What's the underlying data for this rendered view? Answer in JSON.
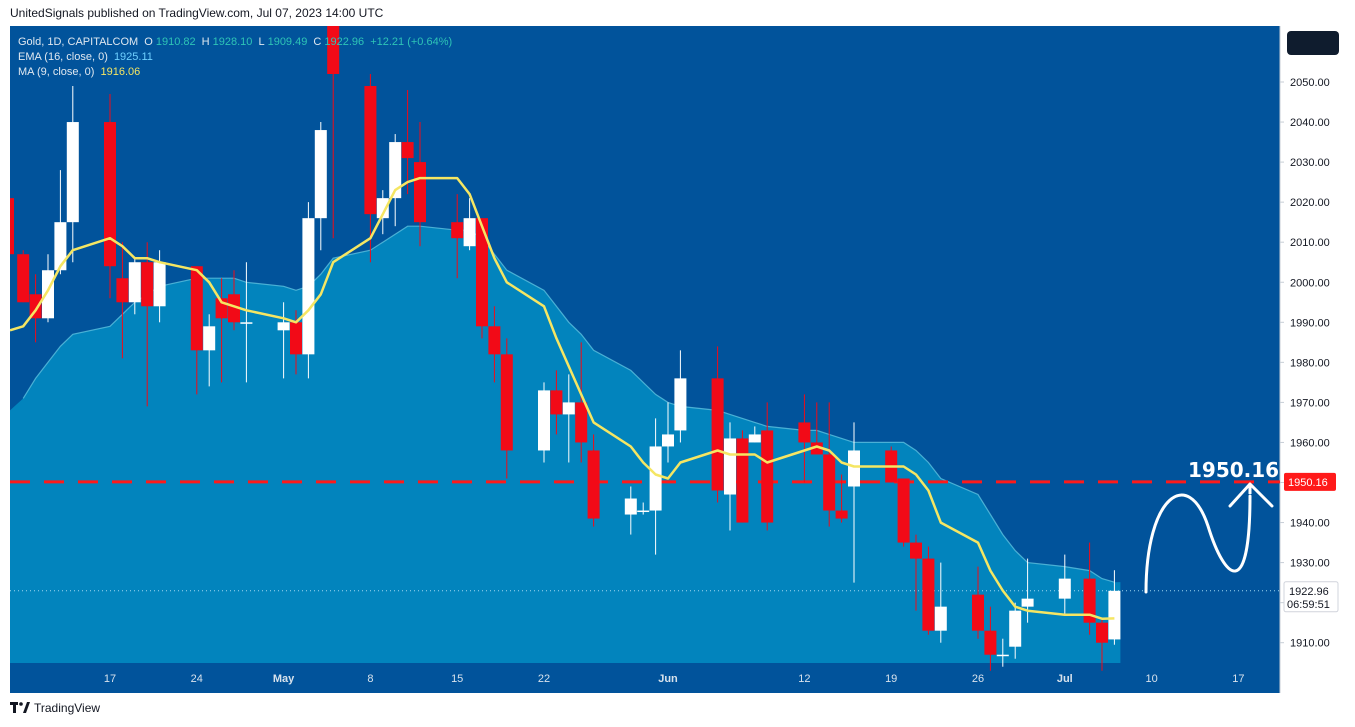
{
  "header": {
    "published": "UnitedSignals published on TradingView.com, Jul 07, 2023 14:00 UTC"
  },
  "legend": {
    "symbol": "Gold, 1D, CAPITALCOM",
    "ohlc": [
      {
        "label": "O",
        "value": "1910.82"
      },
      {
        "label": "H",
        "value": "1928.10"
      },
      {
        "label": "L",
        "value": "1909.49"
      },
      {
        "label": "C",
        "value": "1922.96"
      }
    ],
    "change": "+12.21 (+0.64%)",
    "ema_label": "EMA (16, close, 0)",
    "ema_value": "1925.11",
    "ma_label": "MA (9, close, 0)",
    "ma_value": "1916.06"
  },
  "footer": {
    "brand": "TradingView"
  },
  "colors": {
    "background": "#01539b",
    "area": "#0284bd",
    "bull": "#ffffff",
    "bear": "#f20a17",
    "ma": "#f5e663",
    "target_line": "#ff1a1a",
    "ema_line": "#5cc0de"
  },
  "chart_data": {
    "type": "candlestick",
    "ylim": [
      1903,
      2064
    ],
    "y_ticks": [
      1910,
      1920,
      1930,
      1940,
      1950,
      1960,
      1970,
      1980,
      1990,
      2000,
      2010,
      2020,
      2030,
      2040,
      2050
    ],
    "y_tick_labels": [
      "1910.00",
      "1920.00",
      "1930.00",
      "1940.00",
      "1950.00",
      "1960.00",
      "1970.00",
      "1980.00",
      "1990.00",
      "2000.00",
      "2010.00",
      "2020.00",
      "2030.00",
      "2040.00",
      "2050.00"
    ],
    "x_labels": [
      {
        "label": "17",
        "date": "2023-04-17"
      },
      {
        "label": "24",
        "date": "2023-04-24"
      },
      {
        "label": "May",
        "date": "2023-05-01",
        "bold": true
      },
      {
        "label": "8",
        "date": "2023-05-08"
      },
      {
        "label": "15",
        "date": "2023-05-15"
      },
      {
        "label": "22",
        "date": "2023-05-22"
      },
      {
        "label": "Jun",
        "date": "2023-06-01",
        "bold": true
      },
      {
        "label": "12",
        "date": "2023-06-12"
      },
      {
        "label": "19",
        "date": "2023-06-19"
      },
      {
        "label": "26",
        "date": "2023-06-26"
      },
      {
        "label": "Jul",
        "date": "2023-07-03",
        "bold": true
      },
      {
        "label": "10",
        "date": "2023-07-10"
      },
      {
        "label": "17",
        "date": "2023-07-17"
      }
    ],
    "candles": [
      {
        "date": "2023-04-10",
        "o": 2007,
        "h": 2008,
        "l": 1995,
        "c": 1995
      },
      {
        "date": "2023-04-11",
        "o": 1997,
        "h": 2002,
        "l": 1985,
        "c": 1991
      },
      {
        "date": "2023-04-12",
        "o": 1991,
        "h": 2007,
        "l": 1990,
        "c": 2003
      },
      {
        "date": "2023-04-13",
        "o": 2003,
        "h": 2028,
        "l": 2002,
        "c": 2015
      },
      {
        "date": "2023-04-14",
        "o": 2015,
        "h": 2049,
        "l": 2005,
        "c": 2040
      },
      {
        "date": "2023-04-17",
        "o": 2040,
        "h": 2047,
        "l": 1996,
        "c": 2004
      },
      {
        "date": "2023-04-18",
        "o": 2001,
        "h": 2010,
        "l": 1981,
        "c": 1995
      },
      {
        "date": "2023-04-19",
        "o": 1995,
        "h": 2006,
        "l": 1992,
        "c": 2005
      },
      {
        "date": "2023-04-20",
        "o": 2005,
        "h": 2010,
        "l": 1969,
        "c": 1994
      },
      {
        "date": "2023-04-21",
        "o": 1994,
        "h": 2008,
        "l": 1990,
        "c": 2005
      },
      {
        "date": "2023-04-24",
        "o": 2004,
        "h": 2004,
        "l": 1972,
        "c": 1983
      },
      {
        "date": "2023-04-25",
        "o": 1983,
        "h": 1992,
        "l": 1974,
        "c": 1989
      },
      {
        "date": "2023-04-26",
        "o": 1996,
        "h": 2001,
        "l": 1975,
        "c": 1991
      },
      {
        "date": "2023-04-27",
        "o": 1997,
        "h": 2003,
        "l": 1988,
        "c": 1990
      },
      {
        "date": "2023-04-28",
        "o": 1990,
        "h": 2005,
        "l": 1975,
        "c": 1990
      },
      {
        "date": "2023-05-01",
        "o": 1988,
        "h": 1995,
        "l": 1976,
        "c": 1990
      },
      {
        "date": "2023-05-02",
        "o": 1990,
        "h": 1993,
        "l": 1977,
        "c": 1982
      },
      {
        "date": "2023-05-03",
        "o": 1982,
        "h": 2020,
        "l": 1976,
        "c": 2016
      },
      {
        "date": "2023-05-04",
        "o": 2016,
        "h": 2040,
        "l": 2008,
        "c": 2038
      },
      {
        "date": "2023-05-05",
        "o": 2064,
        "h": 2070,
        "l": 2011,
        "c": 2052
      },
      {
        "date": "2023-05-08",
        "o": 2049,
        "h": 2052,
        "l": 2005,
        "c": 2017
      },
      {
        "date": "2023-05-09",
        "o": 2016,
        "h": 2023,
        "l": 2012,
        "c": 2021
      },
      {
        "date": "2023-05-10",
        "o": 2021,
        "h": 2037,
        "l": 2014,
        "c": 2035
      },
      {
        "date": "2023-05-11",
        "o": 2035,
        "h": 2048,
        "l": 2022,
        "c": 2031
      },
      {
        "date": "2023-05-12",
        "o": 2030,
        "h": 2040,
        "l": 2009,
        "c": 2015
      },
      {
        "date": "2023-05-15",
        "o": 2015,
        "h": 2022,
        "l": 2001,
        "c": 2011
      },
      {
        "date": "2023-05-16",
        "o": 2009,
        "h": 2021,
        "l": 2008,
        "c": 2016
      },
      {
        "date": "2023-05-17",
        "o": 2016,
        "h": 2016,
        "l": 1986,
        "c": 1989
      },
      {
        "date": "2023-05-18",
        "o": 1989,
        "h": 1994,
        "l": 1975,
        "c": 1982
      },
      {
        "date": "2023-05-19",
        "o": 1982,
        "h": 1986,
        "l": 1951,
        "c": 1958
      },
      {
        "date": "2023-05-22",
        "o": 1958,
        "h": 1975,
        "l": 1955,
        "c": 1973
      },
      {
        "date": "2023-05-23",
        "o": 1973,
        "h": 1978,
        "l": 1962,
        "c": 1967
      },
      {
        "date": "2023-05-24",
        "o": 1967,
        "h": 1977,
        "l": 1955,
        "c": 1970
      },
      {
        "date": "2023-05-25",
        "o": 1970,
        "h": 1985,
        "l": 1955,
        "c": 1960
      },
      {
        "date": "2023-05-26",
        "o": 1958,
        "h": 1962,
        "l": 1939,
        "c": 1941
      },
      {
        "date": "2023-05-29",
        "o": 1942,
        "h": 1949,
        "l": 1937,
        "c": 1946
      },
      {
        "date": "2023-05-30",
        "o": 1943,
        "h": 1945,
        "l": 1942,
        "c": 1943
      },
      {
        "date": "2023-05-31",
        "o": 1943,
        "h": 1966,
        "l": 1932,
        "c": 1959
      },
      {
        "date": "2023-06-01",
        "o": 1959,
        "h": 1970,
        "l": 1955,
        "c": 1962
      },
      {
        "date": "2023-06-02",
        "o": 1963,
        "h": 1983,
        "l": 1960,
        "c": 1976
      },
      {
        "date": "2023-06-05",
        "o": 1976,
        "h": 1984,
        "l": 1945,
        "c": 1948
      },
      {
        "date": "2023-06-06",
        "o": 1947,
        "h": 1965,
        "l": 1938,
        "c": 1961
      },
      {
        "date": "2023-06-07",
        "o": 1961,
        "h": 1963,
        "l": 1940,
        "c": 1940
      },
      {
        "date": "2023-06-08",
        "o": 1960,
        "h": 1964,
        "l": 1960,
        "c": 1962
      },
      {
        "date": "2023-06-09",
        "o": 1963,
        "h": 1970,
        "l": 1938,
        "c": 1940
      },
      {
        "date": "2023-06-12",
        "o": 1965,
        "h": 1972,
        "l": 1950,
        "c": 1960
      },
      {
        "date": "2023-06-13",
        "o": 1960,
        "h": 1970,
        "l": 1957,
        "c": 1957
      },
      {
        "date": "2023-06-14",
        "o": 1957,
        "h": 1970,
        "l": 1939,
        "c": 1943
      },
      {
        "date": "2023-06-15",
        "o": 1943,
        "h": 1952,
        "l": 1940,
        "c": 1941
      },
      {
        "date": "2023-06-16",
        "o": 1949,
        "h": 1965,
        "l": 1925,
        "c": 1958
      },
      {
        "date": "2023-06-19",
        "o": 1958,
        "h": 1959,
        "l": 1950,
        "c": 1950
      },
      {
        "date": "2023-06-20",
        "o": 1951,
        "h": 1951,
        "l": 1934,
        "c": 1935
      },
      {
        "date": "2023-06-21",
        "o": 1935,
        "h": 1937,
        "l": 1918,
        "c": 1931
      },
      {
        "date": "2023-06-22",
        "o": 1931,
        "h": 1934,
        "l": 1912,
        "c": 1913
      },
      {
        "date": "2023-06-23",
        "o": 1913,
        "h": 1930,
        "l": 1910,
        "c": 1919
      },
      {
        "date": "2023-06-26",
        "o": 1922,
        "h": 1929,
        "l": 1911,
        "c": 1913
      },
      {
        "date": "2023-06-27",
        "o": 1913,
        "h": 1919,
        "l": 1903,
        "c": 1907
      },
      {
        "date": "2023-06-28",
        "o": 1907,
        "h": 1911,
        "l": 1904,
        "c": 1907
      },
      {
        "date": "2023-06-29",
        "o": 1909,
        "h": 1920,
        "l": 1906,
        "c": 1918
      },
      {
        "date": "2023-06-30",
        "o": 1919,
        "h": 1931,
        "l": 1915,
        "c": 1921
      },
      {
        "date": "2023-07-03",
        "o": 1921,
        "h": 1932,
        "l": 1917,
        "c": 1926
      },
      {
        "date": "2023-07-05",
        "o": 1926,
        "h": 1935,
        "l": 1912,
        "c": 1915
      },
      {
        "date": "2023-07-06",
        "o": 1915,
        "h": 1916,
        "l": 1903,
        "c": 1910
      },
      {
        "date": "2023-07-07",
        "o": 1910.82,
        "h": 1928.1,
        "l": 1909.49,
        "c": 1922.96
      }
    ],
    "ma_series": {
      "name": "MA (9, close, 0)",
      "values": [
        1989,
        1993,
        1998,
        2004,
        2008,
        2011,
        2009,
        2006,
        2006,
        2005,
        2003,
        2000,
        1995,
        1994,
        1993,
        1991,
        1990,
        1993,
        1997,
        2005,
        2011,
        2017,
        2023,
        2025,
        2026,
        2026,
        2022,
        2014,
        2006,
        2000,
        1994,
        1986,
        1979,
        1972,
        1965,
        1959,
        1955,
        1952,
        1951,
        1955,
        1958,
        1957,
        1957,
        1957,
        1955,
        1958,
        1959,
        1958,
        1955,
        1954,
        1954,
        1954,
        1952,
        1948,
        1940,
        1935,
        1928,
        1923,
        1919,
        1918,
        1917,
        1917,
        1916,
        1916.06
      ]
    },
    "ema_series": {
      "name": "EMA (16, close, 0)",
      "values": [
        1971,
        1976,
        1980,
        1984,
        1987,
        1989,
        1992,
        1995,
        1997,
        1999,
        2001,
        2001,
        2001,
        2001,
        2000,
        1999,
        1998,
        1999,
        2002,
        2006,
        2008,
        2010,
        2012,
        2014,
        2014,
        2013,
        2013,
        2011,
        2007,
        2003,
        1998,
        1994,
        1990,
        1987,
        1983,
        1978,
        1975,
        1972,
        1970,
        1969,
        1968,
        1967,
        1966,
        1965,
        1964,
        1963,
        1963,
        1962,
        1961,
        1960,
        1960,
        1960,
        1958,
        1955,
        1951,
        1947,
        1942,
        1937,
        1933,
        1930,
        1929,
        1928,
        1926,
        1925.11
      ]
    },
    "horizontal_line": {
      "value": 1950.16,
      "label": "1950.16",
      "axis_tag": "1950.16"
    },
    "last_price": {
      "value": "1922.96",
      "countdown": "06:59:51"
    }
  }
}
